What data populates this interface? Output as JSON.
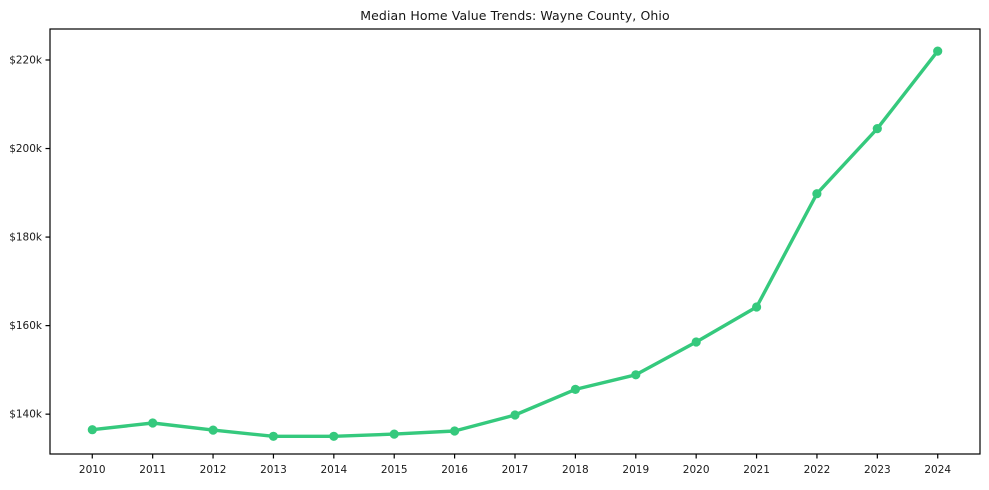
{
  "title": "Median Home Value Trends: Wayne County, Ohio",
  "colors": {
    "line": "#35c97d",
    "marker": "#35c97d",
    "frame": "#000000",
    "text": "#1a1a1a",
    "background": "#ffffff"
  },
  "chart_data": {
    "type": "line",
    "title": "Median Home Value Trends: Wayne County, Ohio",
    "xlabel": "",
    "ylabel": "",
    "grid": false,
    "legend": "none",
    "x": [
      2010,
      2011,
      2012,
      2013,
      2014,
      2015,
      2016,
      2017,
      2018,
      2019,
      2020,
      2021,
      2022,
      2023,
      2024
    ],
    "series": [
      {
        "name": "Median Home Value",
        "values": [
          136500,
          138000,
          136400,
          135000,
          135000,
          135500,
          136200,
          139800,
          145600,
          148900,
          156300,
          164200,
          189800,
          204500,
          222000
        ]
      }
    ],
    "xlim": [
      2009.3,
      2024.7
    ],
    "ylim": [
      131000,
      227000
    ],
    "x_ticks": [
      {
        "value": 2010,
        "label": "2010"
      },
      {
        "value": 2011,
        "label": "2011"
      },
      {
        "value": 2012,
        "label": "2012"
      },
      {
        "value": 2013,
        "label": "2013"
      },
      {
        "value": 2014,
        "label": "2014"
      },
      {
        "value": 2015,
        "label": "2015"
      },
      {
        "value": 2016,
        "label": "2016"
      },
      {
        "value": 2017,
        "label": "2017"
      },
      {
        "value": 2018,
        "label": "2018"
      },
      {
        "value": 2019,
        "label": "2019"
      },
      {
        "value": 2020,
        "label": "2020"
      },
      {
        "value": 2021,
        "label": "2021"
      },
      {
        "value": 2022,
        "label": "2022"
      },
      {
        "value": 2023,
        "label": "2023"
      },
      {
        "value": 2024,
        "label": "2024"
      }
    ],
    "y_ticks": [
      {
        "value": 140000,
        "label": "$140k"
      },
      {
        "value": 160000,
        "label": "$160k"
      },
      {
        "value": 180000,
        "label": "$180k"
      },
      {
        "value": 200000,
        "label": "$200k"
      },
      {
        "value": 220000,
        "label": "$220k"
      }
    ]
  }
}
